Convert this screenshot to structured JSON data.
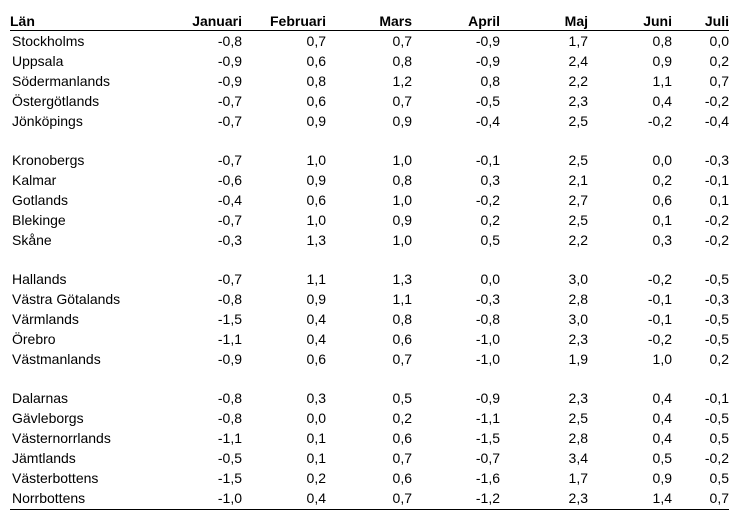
{
  "table": {
    "headers": [
      "Län",
      "Januari",
      "Februari",
      "Mars",
      "April",
      "Maj",
      "Juni",
      "Juli"
    ],
    "groups": [
      [
        {
          "name": "Stockholms",
          "values": [
            "-0,8",
            "0,7",
            "0,7",
            "-0,9",
            "1,7",
            "0,8",
            "0,0"
          ]
        },
        {
          "name": "Uppsala",
          "values": [
            "-0,9",
            "0,6",
            "0,8",
            "-0,9",
            "2,4",
            "0,9",
            "0,2"
          ]
        },
        {
          "name": "Södermanlands",
          "values": [
            "-0,9",
            "0,8",
            "1,2",
            "0,8",
            "2,2",
            "1,1",
            "0,7"
          ]
        },
        {
          "name": "Östergötlands",
          "values": [
            "-0,7",
            "0,6",
            "0,7",
            "-0,5",
            "2,3",
            "0,4",
            "-0,2"
          ]
        },
        {
          "name": "Jönköpings",
          "values": [
            "-0,7",
            "0,9",
            "0,9",
            "-0,4",
            "2,5",
            "-0,2",
            "-0,4"
          ]
        }
      ],
      [
        {
          "name": "Kronobergs",
          "values": [
            "-0,7",
            "1,0",
            "1,0",
            "-0,1",
            "2,5",
            "0,0",
            "-0,3"
          ]
        },
        {
          "name": "Kalmar",
          "values": [
            "-0,6",
            "0,9",
            "0,8",
            "0,3",
            "2,1",
            "0,2",
            "-0,1"
          ]
        },
        {
          "name": "Gotlands",
          "values": [
            "-0,4",
            "0,6",
            "1,0",
            "-0,2",
            "2,7",
            "0,6",
            "0,1"
          ]
        },
        {
          "name": "Blekinge",
          "values": [
            "-0,7",
            "1,0",
            "0,9",
            "0,2",
            "2,5",
            "0,1",
            "-0,2"
          ]
        },
        {
          "name": "Skåne",
          "values": [
            "-0,3",
            "1,3",
            "1,0",
            "0,5",
            "2,2",
            "0,3",
            "-0,2"
          ]
        }
      ],
      [
        {
          "name": "Hallands",
          "values": [
            "-0,7",
            "1,1",
            "1,3",
            "0,0",
            "3,0",
            "-0,2",
            "-0,5"
          ]
        },
        {
          "name": "Västra Götalands",
          "values": [
            "-0,8",
            "0,9",
            "1,1",
            "-0,3",
            "2,8",
            "-0,1",
            "-0,3"
          ]
        },
        {
          "name": "Värmlands",
          "values": [
            "-1,5",
            "0,4",
            "0,8",
            "-0,8",
            "3,0",
            "-0,1",
            "-0,5"
          ]
        },
        {
          "name": "Örebro",
          "values": [
            "-1,1",
            "0,4",
            "0,6",
            "-1,0",
            "2,3",
            "-0,2",
            "-0,5"
          ]
        },
        {
          "name": "Västmanlands",
          "values": [
            "-0,9",
            "0,6",
            "0,7",
            "-1,0",
            "1,9",
            "1,0",
            "0,2"
          ]
        }
      ],
      [
        {
          "name": "Dalarnas",
          "values": [
            "-0,8",
            "0,3",
            "0,5",
            "-0,9",
            "2,3",
            "0,4",
            "-0,1"
          ]
        },
        {
          "name": "Gävleborgs",
          "values": [
            "-0,8",
            "0,0",
            "0,2",
            "-1,1",
            "2,5",
            "0,4",
            "-0,5"
          ]
        },
        {
          "name": "Västernorrlands",
          "values": [
            "-1,1",
            "0,1",
            "0,6",
            "-1,5",
            "2,8",
            "0,4",
            "0,5"
          ]
        },
        {
          "name": "Jämtlands",
          "values": [
            "-0,5",
            "0,1",
            "0,7",
            "-0,7",
            "3,4",
            "0,5",
            "-0,2"
          ]
        },
        {
          "name": "Västerbottens",
          "values": [
            "-1,5",
            "0,2",
            "0,6",
            "-1,6",
            "1,7",
            "0,9",
            "0,5"
          ]
        },
        {
          "name": "Norrbottens",
          "values": [
            "-1,0",
            "0,4",
            "0,7",
            "-1,2",
            "2,3",
            "1,4",
            "0,7"
          ]
        }
      ]
    ]
  }
}
